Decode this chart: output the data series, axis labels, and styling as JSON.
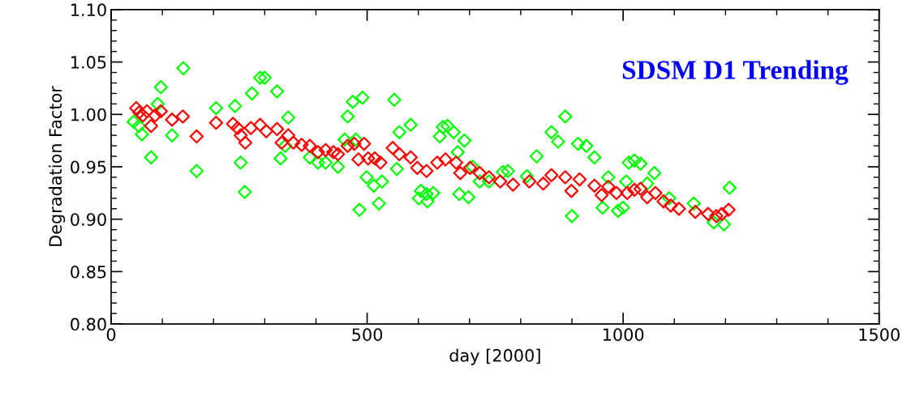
{
  "chart_data": {
    "type": "scatter",
    "title": "SDSM D1 Trending",
    "xlabel": "day [2000]",
    "ylabel": "Degradation Factor",
    "xlim": [
      0,
      1500
    ],
    "xticks": [
      0,
      500,
      1000,
      1500
    ],
    "ylim": [
      0.8,
      1.1
    ],
    "yticks": [
      {
        "value": 0.8,
        "label": "0.80"
      },
      {
        "value": 0.85,
        "label": "0.85"
      },
      {
        "value": 0.9,
        "label": "0.90"
      },
      {
        "value": 0.95,
        "label": "0.95"
      },
      {
        "value": 1.0,
        "label": "1.00"
      },
      {
        "value": 1.05,
        "label": "1.05"
      },
      {
        "value": 1.1,
        "label": "1.10"
      }
    ],
    "marker": "diamond",
    "grid": false,
    "legend": false,
    "series": [
      {
        "color": "#00ff00",
        "x": [
          44,
          54,
          60,
          78,
          91,
          97,
          119,
          141,
          167,
          205,
          242,
          253,
          261,
          275,
          291,
          300,
          324,
          331,
          340,
          346,
          388,
          404,
          419,
          443,
          456,
          462,
          472,
          478,
          485,
          491,
          499,
          513,
          523,
          529,
          553,
          558,
          563,
          585,
          601,
          605,
          616,
          618,
          629,
          642,
          648,
          657,
          669,
          677,
          680,
          690,
          698,
          706,
          720,
          738,
          765,
          775,
          812,
          831,
          844,
          860,
          873,
          887,
          900,
          912,
          928,
          944,
          960,
          971,
          990,
          1000,
          1006,
          1011,
          1022,
          1034,
          1047,
          1061,
          1090,
          1138,
          1177,
          1197,
          1208
        ],
        "values": [
          0.993,
          0.989,
          0.981,
          0.959,
          1.01,
          1.026,
          0.98,
          1.044,
          0.946,
          1.006,
          1.008,
          0.954,
          0.926,
          1.02,
          1.035,
          1.035,
          1.022,
          0.958,
          0.97,
          0.997,
          0.959,
          0.954,
          0.954,
          0.95,
          0.976,
          0.998,
          1.012,
          0.976,
          0.909,
          1.016,
          0.94,
          0.932,
          0.915,
          0.936,
          1.014,
          0.948,
          0.983,
          0.99,
          0.92,
          0.927,
          0.924,
          0.917,
          0.925,
          0.979,
          0.988,
          0.989,
          0.983,
          0.964,
          0.924,
          0.975,
          0.921,
          0.95,
          0.936,
          0.936,
          0.945,
          0.946,
          0.941,
          0.96,
          null,
          0.983,
          0.974,
          0.998,
          0.903,
          0.972,
          0.97,
          0.959,
          0.911,
          0.94,
          0.908,
          0.911,
          0.936,
          0.954,
          0.956,
          0.953,
          0.934,
          0.944,
          0.92,
          0.915,
          0.897,
          0.895,
          0.93
        ]
      },
      {
        "color": "#ff0000",
        "x": [
          49,
          55,
          62,
          70,
          78,
          86,
          97,
          119,
          140,
          167,
          205,
          238,
          247,
          253,
          262,
          273,
          291,
          303,
          324,
          333,
          346,
          356,
          372,
          388,
          404,
          419,
          434,
          443,
          462,
          475,
          483,
          494,
          502,
          515,
          526,
          550,
          563,
          585,
          598,
          616,
          637,
          653,
          674,
          682,
          701,
          720,
          738,
          760,
          785,
          817,
          844,
          860,
          887,
          899,
          915,
          944,
          958,
          971,
          987,
          1008,
          1022,
          1034,
          1047,
          1063,
          1079,
          1093,
          1109,
          1141,
          1166,
          1182,
          1193,
          1206
        ],
        "values": [
          1.006,
          1.002,
          0.999,
          1.003,
          0.989,
          0.999,
          1.003,
          0.995,
          0.998,
          0.979,
          0.992,
          0.991,
          0.987,
          0.98,
          0.973,
          0.987,
          0.99,
          0.984,
          0.986,
          0.973,
          0.98,
          0.973,
          0.971,
          0.97,
          0.964,
          0.966,
          0.964,
          0.962,
          0.97,
          0.972,
          0.957,
          0.972,
          0.958,
          0.958,
          0.954,
          0.968,
          0.962,
          0.959,
          0.949,
          0.946,
          0.954,
          0.957,
          0.954,
          0.944,
          0.949,
          0.944,
          0.94,
          0.936,
          0.933,
          0.936,
          0.934,
          0.942,
          0.94,
          0.927,
          0.938,
          0.932,
          0.923,
          0.931,
          0.925,
          0.925,
          0.928,
          0.929,
          0.921,
          0.925,
          0.917,
          0.913,
          0.91,
          0.907,
          0.905,
          0.903,
          0.905,
          0.909
        ]
      }
    ]
  }
}
